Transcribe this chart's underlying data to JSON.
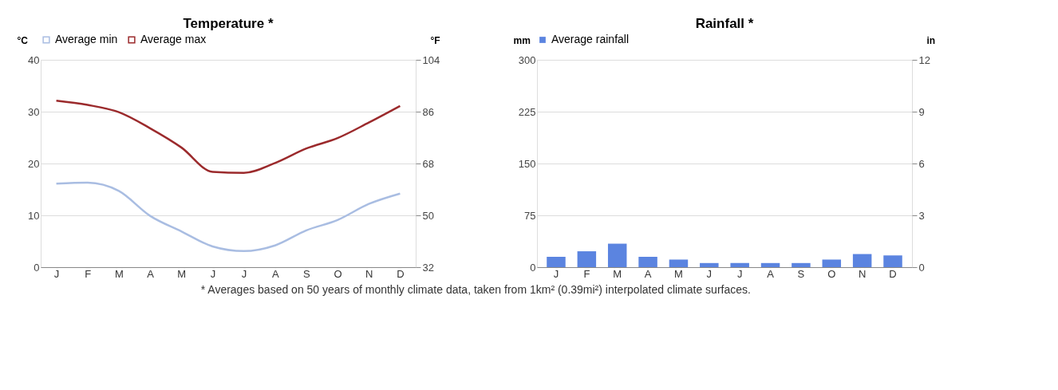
{
  "chart_data": [
    {
      "type": "line",
      "title": "Temperature *",
      "ylabel": "°C",
      "y2label": "°F",
      "categories": [
        "J",
        "F",
        "M",
        "A",
        "M",
        "J",
        "J",
        "A",
        "S",
        "O",
        "N",
        "D"
      ],
      "series": [
        {
          "name": "Average min",
          "color": "#a9bde2",
          "values": [
            16.1,
            16.3,
            14.7,
            9.9,
            6.9,
            4.0,
            3.1,
            4.2,
            7.1,
            9.1,
            12.2,
            14.2
          ]
        },
        {
          "name": "Average max",
          "color": "#9b2a2c",
          "values": [
            32.1,
            31.3,
            29.9,
            26.8,
            23.1,
            18.4,
            18.2,
            20.1,
            22.9,
            24.9,
            27.9,
            31.1
          ]
        }
      ],
      "ylim": [
        0,
        40
      ],
      "yticks": [
        0,
        10,
        20,
        30,
        40
      ],
      "y2lim": [
        32,
        104
      ],
      "y2ticks": [
        32,
        50,
        68,
        86,
        104
      ],
      "grid": "y",
      "legend": "top",
      "line_style": "solid",
      "marker": "none",
      "annotations": [
        "* Averages based on 50 years of monthly climate data, taken from 1km² (0.39mi²) interpolated climate surfaces."
      ]
    },
    {
      "type": "bar",
      "title": "Rainfall *",
      "ylabel": "mm",
      "y2label": "in",
      "categories": [
        "J",
        "F",
        "M",
        "A",
        "M",
        "J",
        "J",
        "A",
        "S",
        "O",
        "N",
        "D"
      ],
      "series": [
        {
          "name": "Average rainfall",
          "color": "#5b84e0",
          "values": [
            15,
            23,
            34,
            15,
            11,
            6,
            6,
            6,
            6,
            11,
            19,
            17
          ]
        }
      ],
      "ylim": [
        0,
        300
      ],
      "yticks": [
        0,
        75,
        150,
        225,
        300
      ],
      "y2lim": [
        0,
        12
      ],
      "y2ticks": [
        0,
        3,
        6,
        9,
        12
      ],
      "grid": "y",
      "legend": "top"
    }
  ]
}
